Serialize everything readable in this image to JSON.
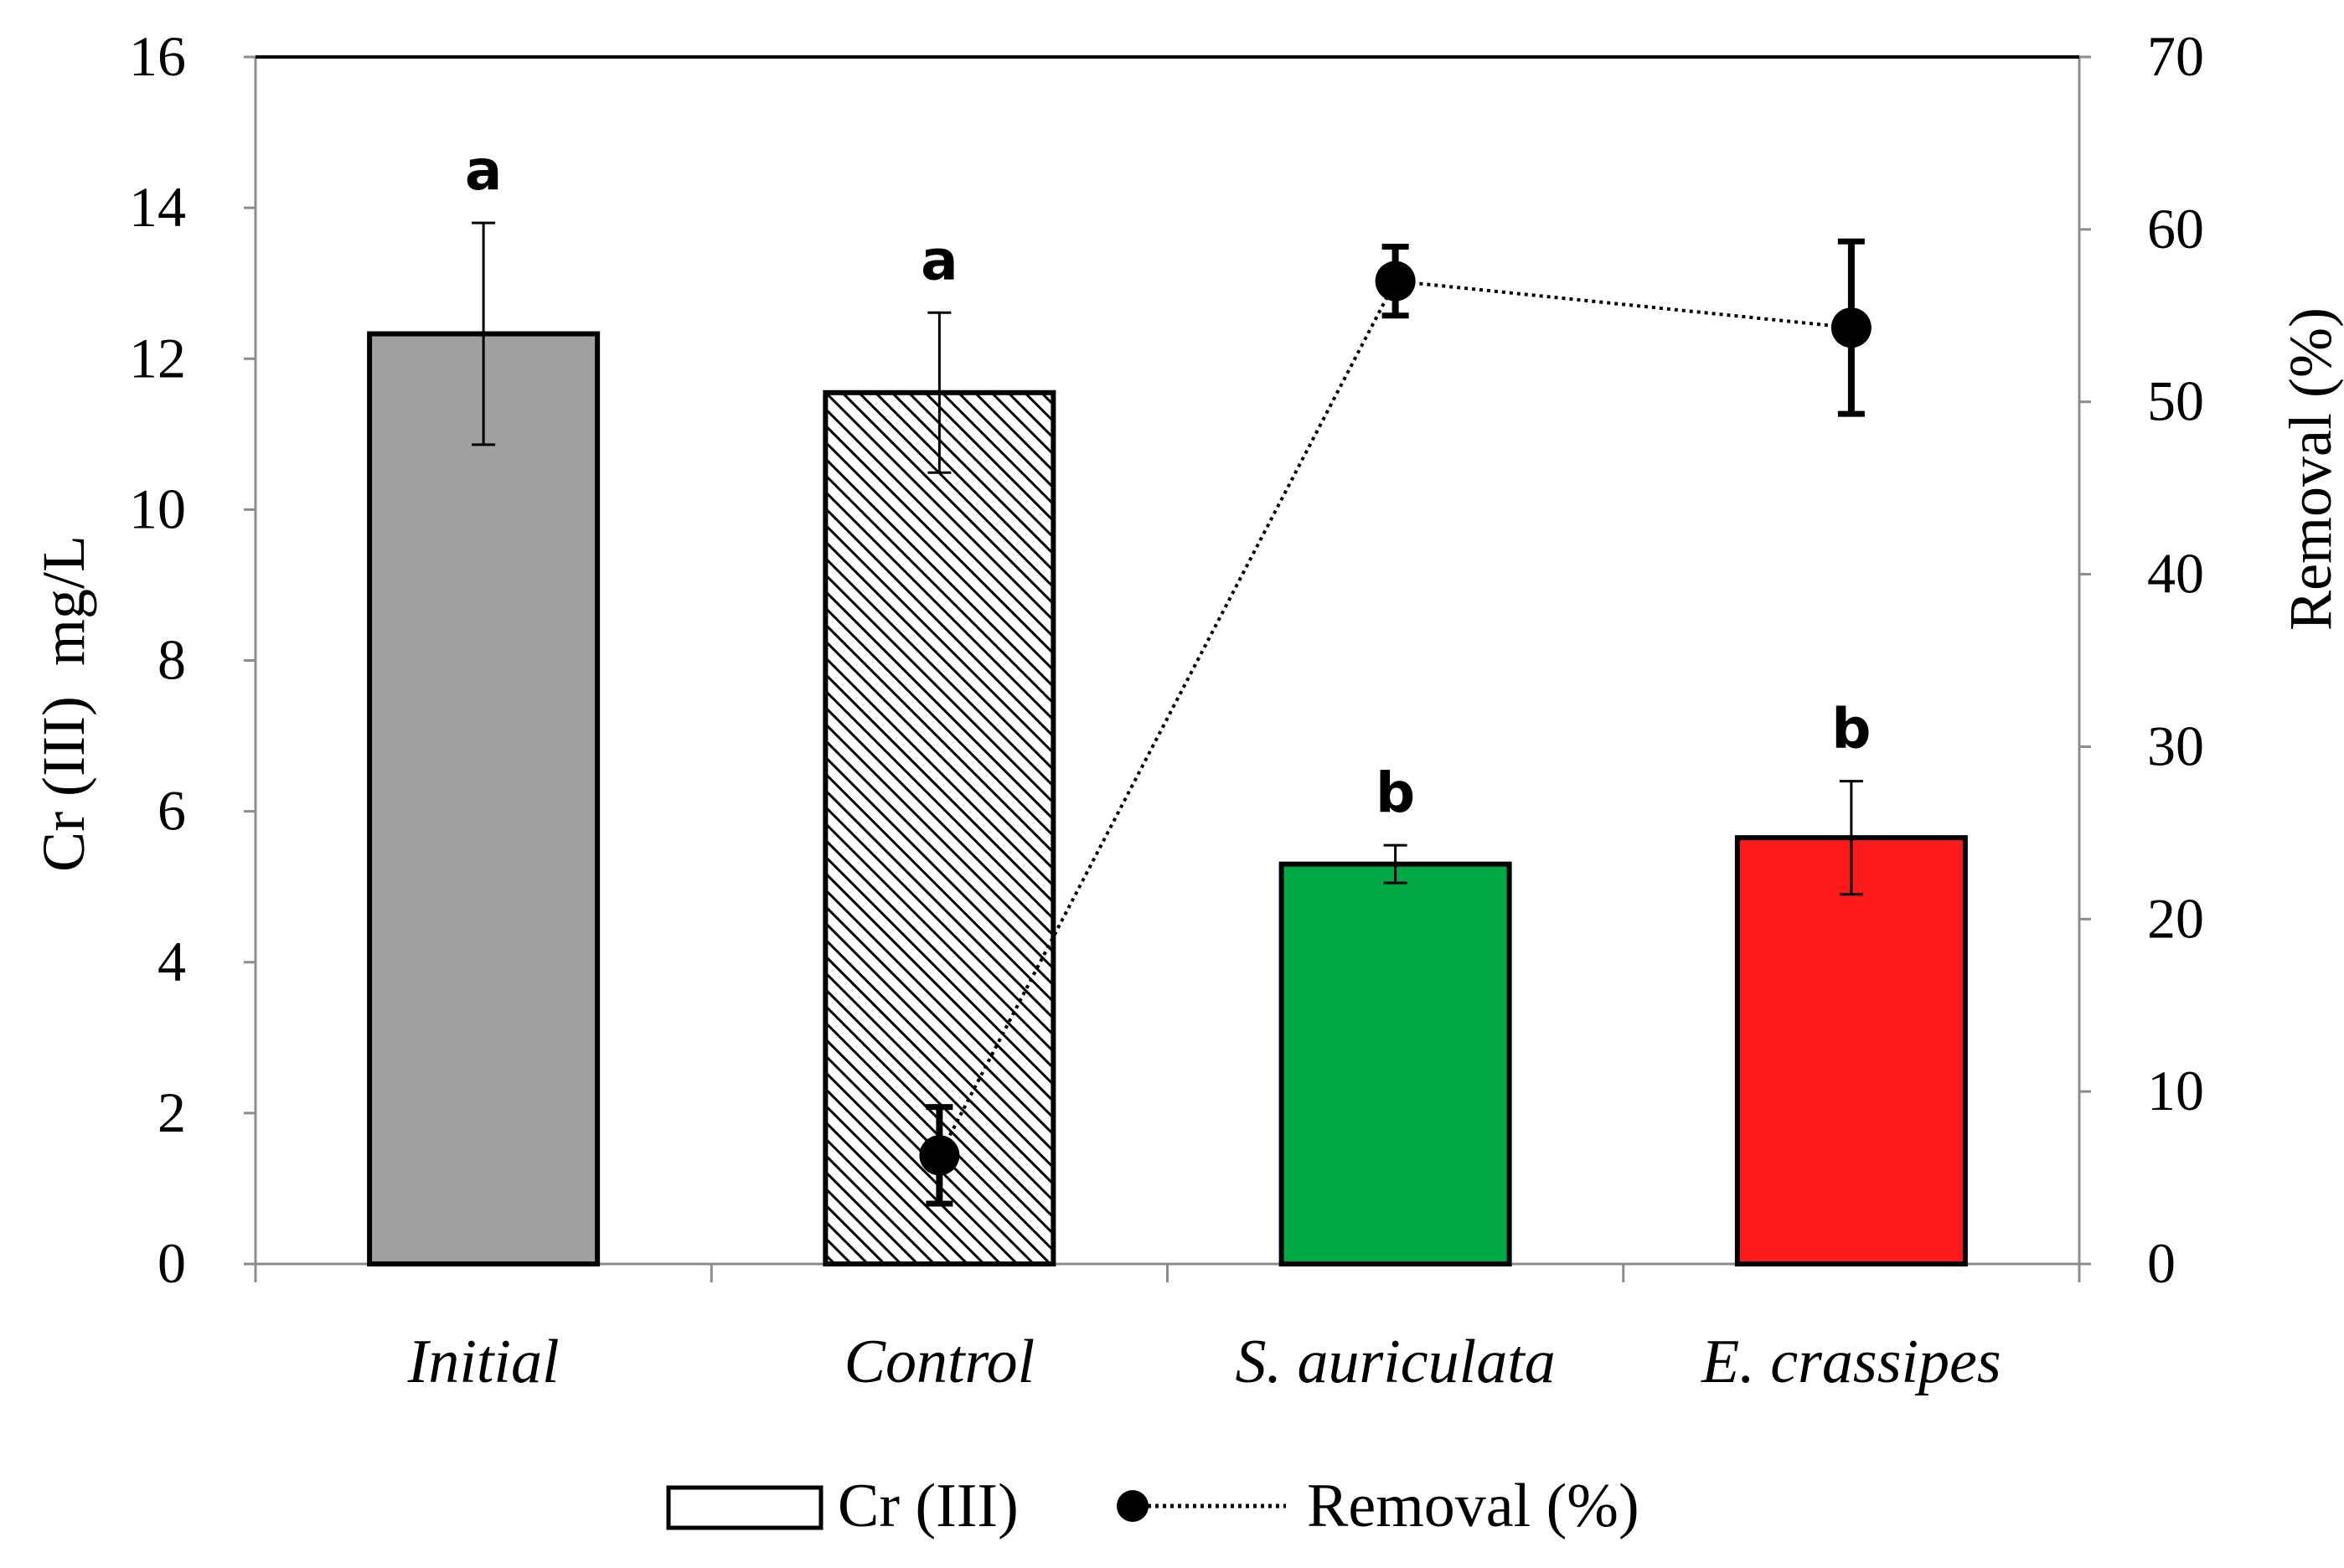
{
  "chart_data": {
    "type": "bar",
    "categories": [
      "Initial",
      "Control",
      "S. auriculata",
      "E. crassipes"
    ],
    "series": [
      {
        "name": "Cr (III)",
        "axis": "left",
        "values": [
          12.33,
          11.55,
          5.3,
          5.65
        ],
        "errors": [
          1.47,
          1.06,
          0.25,
          0.75
        ],
        "colors": [
          "#a0a0a0",
          "hatch",
          "#00a846",
          "#fe1a1a"
        ],
        "significance": [
          "a",
          "a",
          "b",
          "b"
        ]
      },
      {
        "name": "Removal (%)",
        "axis": "right",
        "type": "line",
        "style": "dotted",
        "values": [
          null,
          6.3,
          57.0,
          54.3
        ],
        "errors": [
          null,
          2.8,
          2.0,
          5.0
        ]
      }
    ],
    "title": "",
    "xlabel": "",
    "ylabel": "Cr (III)  mg/L",
    "y2label": "Removal (%)",
    "ylim": [
      0,
      16
    ],
    "y2lim": [
      0,
      70
    ],
    "yticks": [
      0,
      2,
      4,
      6,
      8,
      10,
      12,
      14,
      16
    ],
    "y2ticks": [
      0,
      10,
      20,
      30,
      40,
      50,
      60,
      70
    ],
    "legend_position": "bottom-center",
    "grid": false
  }
}
